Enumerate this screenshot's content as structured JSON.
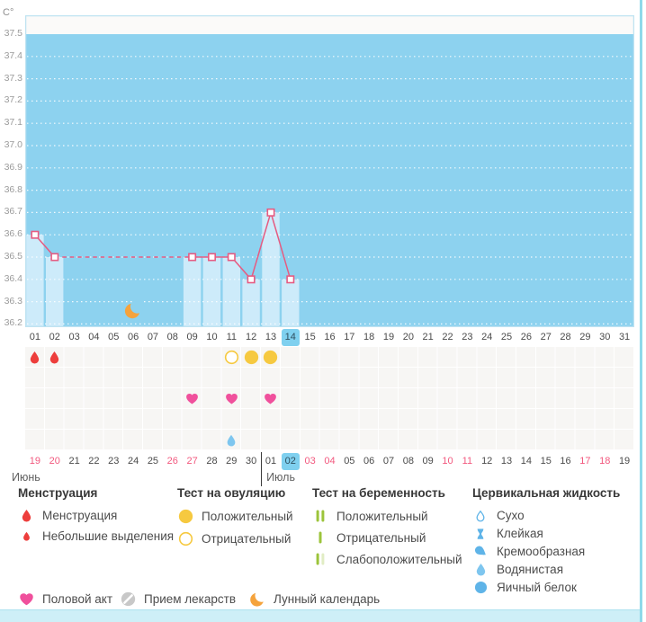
{
  "colors": {
    "chart_area_blue": "#8DD2EF",
    "chart_column_blue": "#CDEBFA",
    "chart_top_band": "#FBFAF9",
    "chart_border": "#BFE3F1",
    "temp_line_pink": "#E65B81",
    "selected_day_blue": "#7FD0EF",
    "weekend_pink": "#F2587E",
    "date_text": "#4A4A4A",
    "axis_text": "#9B9B9B",
    "menstruation_red": "#ED3E3C",
    "ovulation_yellow": "#F6C940",
    "pregnancy_green": "#9CC43B",
    "cervical_blue": "#5FB4E8",
    "watery_blue": "#7EC6EF",
    "heart_pink": "#F0509C",
    "pill_gray": "#C8C8C8",
    "moon_orange": "#F5A33C",
    "footer_strip_blue": "#CEEFF7",
    "right_edge_teal": "#8ED9E9",
    "grid_bg": "#F7F6F4"
  },
  "chart_data": {
    "type": "line",
    "unit": "C°",
    "ylim": [
      36.2,
      37.5
    ],
    "y_ticks": [
      "37.5",
      "37.4",
      "37.3",
      "37.2",
      "37.1",
      "37.0",
      "36.9",
      "36.8",
      "36.7",
      "36.6",
      "36.5",
      "36.4",
      "36.3",
      "36.2"
    ],
    "x_days_total": 31,
    "series": [
      {
        "points": [
          {
            "day": 1,
            "value": 36.6
          },
          {
            "day": 2,
            "value": 36.5
          },
          {
            "day": 9,
            "value": 36.5
          },
          {
            "day": 10,
            "value": 36.5
          },
          {
            "day": 11,
            "value": 36.5
          },
          {
            "day": 12,
            "value": 36.4
          },
          {
            "day": 13,
            "value": 36.7
          },
          {
            "day": 14,
            "value": 36.4
          }
        ],
        "gap_dashed_segments": [
          [
            2,
            9
          ]
        ]
      }
    ],
    "moon_marker_day": 6
  },
  "cycle_days": {
    "days": [
      "01",
      "02",
      "03",
      "04",
      "05",
      "06",
      "07",
      "08",
      "09",
      "10",
      "11",
      "12",
      "13",
      "14",
      "15",
      "16",
      "17",
      "18",
      "19",
      "20",
      "21",
      "22",
      "23",
      "24",
      "25",
      "26",
      "27",
      "28",
      "29",
      "30",
      "31"
    ],
    "highlighted_day": "14"
  },
  "calendar": {
    "days": [
      {
        "d": "19",
        "month": "Июнь",
        "weekend": true
      },
      {
        "d": "20",
        "month": "Июнь",
        "weekend": true
      },
      {
        "d": "21",
        "month": "Июнь",
        "weekend": false
      },
      {
        "d": "22",
        "month": "Июнь",
        "weekend": false
      },
      {
        "d": "23",
        "month": "Июнь",
        "weekend": false
      },
      {
        "d": "24",
        "month": "Июнь",
        "weekend": false
      },
      {
        "d": "25",
        "month": "Июнь",
        "weekend": false
      },
      {
        "d": "26",
        "month": "Июнь",
        "weekend": true
      },
      {
        "d": "27",
        "month": "Июнь",
        "weekend": true
      },
      {
        "d": "28",
        "month": "Июнь",
        "weekend": false
      },
      {
        "d": "29",
        "month": "Июнь",
        "weekend": false
      },
      {
        "d": "30",
        "month": "Июнь",
        "weekend": false
      },
      {
        "d": "01",
        "month": "Июль",
        "weekend": false
      },
      {
        "d": "02",
        "month": "Июль",
        "weekend": false
      },
      {
        "d": "03",
        "month": "Июль",
        "weekend": true
      },
      {
        "d": "04",
        "month": "Июль",
        "weekend": true
      },
      {
        "d": "05",
        "month": "Июль",
        "weekend": false
      },
      {
        "d": "06",
        "month": "Июль",
        "weekend": false
      },
      {
        "d": "07",
        "month": "Июль",
        "weekend": false
      },
      {
        "d": "08",
        "month": "Июль",
        "weekend": false
      },
      {
        "d": "09",
        "month": "Июль",
        "weekend": false
      },
      {
        "d": "10",
        "month": "Июль",
        "weekend": true
      },
      {
        "d": "11",
        "month": "Июль",
        "weekend": true
      },
      {
        "d": "12",
        "month": "Июль",
        "weekend": false
      },
      {
        "d": "13",
        "month": "Июль",
        "weekend": false
      },
      {
        "d": "14",
        "month": "Июль",
        "weekend": false
      },
      {
        "d": "15",
        "month": "Июль",
        "weekend": false
      },
      {
        "d": "16",
        "month": "Июль",
        "weekend": false
      },
      {
        "d": "17",
        "month": "Июль",
        "weekend": true
      },
      {
        "d": "18",
        "month": "Июль",
        "weekend": true
      },
      {
        "d": "19",
        "month": "Июль",
        "weekend": false
      }
    ],
    "month_labels": [
      {
        "label": "Июнь",
        "start_index": 0
      },
      {
        "label": "Июль",
        "start_index": 12
      }
    ],
    "highlighted": {
      "month": "Июль",
      "day": "02"
    }
  },
  "events": {
    "menstruation": {
      "icon": "menstruation-drop-icon",
      "days": [
        1,
        2
      ]
    },
    "ovulation_tests": [
      {
        "day": 11,
        "result": "Отрицательный",
        "icon": "ovulation-negative-icon"
      },
      {
        "day": 12,
        "result": "Положительный",
        "icon": "ovulation-positive-icon"
      },
      {
        "day": 13,
        "result": "Положительный",
        "icon": "ovulation-positive-icon"
      }
    ],
    "intercourse": {
      "icon": "intercourse-heart-icon",
      "days": [
        9,
        11,
        13
      ]
    },
    "cervical_fluid": [
      {
        "day": 11,
        "type": "Водянистая",
        "icon": "watery-icon"
      }
    ]
  },
  "legend": {
    "columns": [
      {
        "title": "Менструация",
        "items": [
          {
            "icon": "menstruation-drop-icon",
            "label": "Менструация"
          },
          {
            "icon": "spotting-drop-icon",
            "label": "Небольшие выделения"
          }
        ]
      },
      {
        "title": "Тест на овуляцию",
        "items": [
          {
            "icon": "ovulation-positive-icon",
            "label": "Положительный"
          },
          {
            "icon": "ovulation-negative-icon",
            "label": "Отрицательный"
          }
        ]
      },
      {
        "title": "Тест на беременность",
        "items": [
          {
            "icon": "pregnancy-positive-icon",
            "label": "Положительный"
          },
          {
            "icon": "pregnancy-negative-icon",
            "label": "Отрицательный"
          },
          {
            "icon": "pregnancy-weak-icon",
            "label": "Слабоположительный"
          }
        ]
      },
      {
        "title": "Цервикальная жидкость",
        "items": [
          {
            "icon": "dry-icon",
            "label": "Сухо"
          },
          {
            "icon": "sticky-icon",
            "label": "Клейкая"
          },
          {
            "icon": "creamy-icon",
            "label": "Кремообразная"
          },
          {
            "icon": "watery-icon",
            "label": "Водянистая"
          },
          {
            "icon": "eggwhite-icon",
            "label": "Яичный белок"
          }
        ]
      }
    ],
    "footer_items": [
      {
        "icon": "intercourse-heart-icon",
        "label": "Половой акт"
      },
      {
        "icon": "medication-pill-icon",
        "label": "Прием лекарств"
      },
      {
        "icon": "lunar-calendar-moon-icon",
        "label": "Лунный календарь"
      }
    ]
  }
}
